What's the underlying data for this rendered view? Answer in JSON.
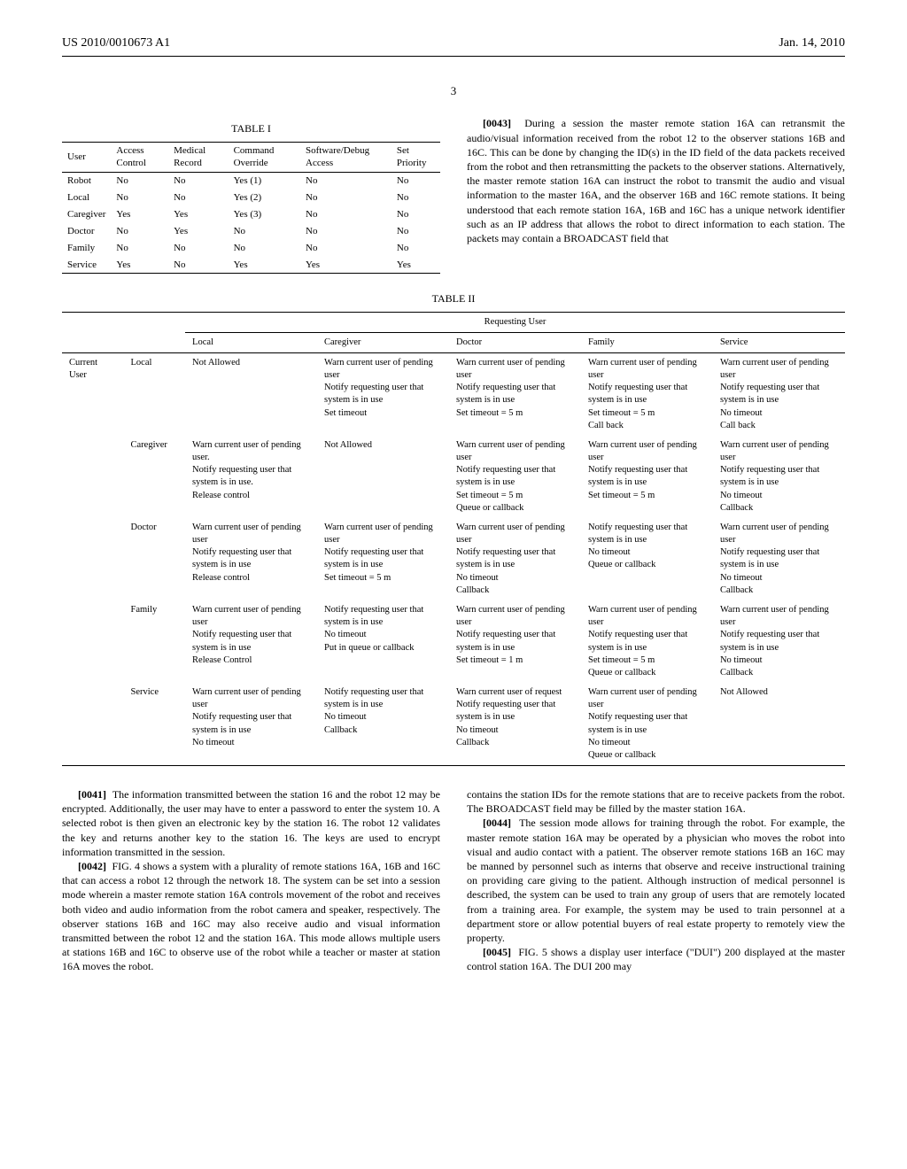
{
  "meta": {
    "pub_number": "US 2010/0010673 A1",
    "pub_date": "Jan. 14, 2010",
    "page": "3"
  },
  "table1": {
    "title": "TABLE I",
    "headers": [
      "User",
      "Access Control",
      "Medical Record",
      "Command Override",
      "Software/Debug Access",
      "Set Priority"
    ],
    "rows": [
      [
        "Robot",
        "No",
        "No",
        "Yes (1)",
        "No",
        "No"
      ],
      [
        "Local",
        "No",
        "No",
        "Yes (2)",
        "No",
        "No"
      ],
      [
        "Caregiver",
        "Yes",
        "Yes",
        "Yes (3)",
        "No",
        "No"
      ],
      [
        "Doctor",
        "No",
        "Yes",
        "No",
        "No",
        "No"
      ],
      [
        "Family",
        "No",
        "No",
        "No",
        "No",
        "No"
      ],
      [
        "Service",
        "Yes",
        "No",
        "Yes",
        "Yes",
        "Yes"
      ]
    ]
  },
  "para43": {
    "num": "[0043]",
    "text": "During a session the master remote station 16A can retransmit the audio/visual information received from the robot 12 to the observer stations 16B and 16C. This can be done by changing the ID(s) in the ID field of the data packets received from the robot and then retransmitting the packets to the observer stations. Alternatively, the master remote station 16A can instruct the robot to transmit the audio and visual information to the master 16A, and the observer 16B and 16C remote stations. It being understood that each remote station 16A, 16B and 16C has a unique network identifier such as an IP address that allows the robot to direct information to each station. The packets may contain a BROADCAST field that"
  },
  "table2": {
    "title": "TABLE II",
    "group_header": "Requesting User",
    "col_headers": [
      "Local",
      "Caregiver",
      "Doctor",
      "Family",
      "Service"
    ],
    "row_group_label": "Current User",
    "rows": [
      {
        "label": "Local",
        "cells": [
          "Not Allowed",
          "Warn current user of pending user\nNotify requesting user that system is in use\nSet timeout",
          "Warn current user of pending user\nNotify requesting user that system is in use\nSet timeout = 5 m",
          "Warn current user of pending user\nNotify requesting user that system is in use\nSet timeout = 5 m\nCall back",
          "Warn current user of pending user\nNotify requesting user that system is in use\nNo timeout\nCall back"
        ]
      },
      {
        "label": "Caregiver",
        "cells": [
          "Warn current user of pending user.\nNotify requesting user that system is in use.\nRelease control",
          "Not Allowed",
          "Warn current user of pending user\nNotify requesting user that system is in use\nSet timeout = 5 m\nQueue or callback",
          "Warn current user of pending user\nNotify requesting user that system is in use\nSet timeout = 5 m",
          "Warn current user of pending user\nNotify requesting user that system is in use\nNo timeout\nCallback"
        ]
      },
      {
        "label": "Doctor",
        "cells": [
          "Warn current user of pending user\nNotify requesting user that system is in use\nRelease control",
          "Warn current user of pending user\nNotify requesting user that system is in use\nSet timeout = 5 m",
          "Warn current user of pending user\nNotify requesting user that system is in use\nNo timeout\nCallback",
          "Notify requesting user that system is in use\nNo timeout\nQueue or callback",
          "Warn current user of pending user\nNotify requesting user that system is in use\nNo timeout\nCallback"
        ]
      },
      {
        "label": "Family",
        "cells": [
          "Warn current user of pending user\nNotify requesting user that system is in use\nRelease Control",
          "Notify requesting user that system is in use\nNo timeout\nPut in queue or callback",
          "Warn current user of pending user\nNotify requesting user that system is in use\nSet timeout = 1 m",
          "Warn current user of pending user\nNotify requesting user that system is in use\nSet timeout = 5 m\nQueue or callback",
          "Warn current user of pending user\nNotify requesting user that system is in use\nNo timeout\nCallback"
        ]
      },
      {
        "label": "Service",
        "cells": [
          "Warn current user of pending user\nNotify requesting user that system is in use\nNo timeout",
          "Notify requesting user that system is in use\nNo timeout\nCallback",
          "Warn current user of request\nNotify requesting user that system is in use\nNo timeout\nCallback",
          "Warn current user of pending user\nNotify requesting user that system is in use\nNo timeout\nQueue or callback",
          "Not Allowed"
        ]
      }
    ]
  },
  "para41": {
    "num": "[0041]",
    "text": "The information transmitted between the station 16 and the robot 12 may be encrypted. Additionally, the user may have to enter a password to enter the system 10. A selected robot is then given an electronic key by the station 16. The robot 12 validates the key and returns another key to the station 16. The keys are used to encrypt information transmitted in the session."
  },
  "para42": {
    "num": "[0042]",
    "text": "FIG. 4 shows a system with a plurality of remote stations 16A, 16B and 16C that can access a robot 12 through the network 18. The system can be set into a session mode wherein a master remote station 16A controls movement of the robot and receives both video and audio information from the robot camera and speaker, respectively. The observer stations 16B and 16C may also receive audio and visual information transmitted between the robot 12 and the station 16A. This mode allows multiple users at stations 16B and 16C to observe use of the robot while a teacher or master at station 16A moves the robot."
  },
  "para43b": {
    "text": "contains the station IDs for the remote stations that are to receive packets from the robot. The BROADCAST field may be filled by the master station 16A."
  },
  "para44": {
    "num": "[0044]",
    "text": "The session mode allows for training through the robot. For example, the master remote station 16A may be operated by a physician who moves the robot into visual and audio contact with a patient. The observer remote stations 16B an 16C may be manned by personnel such as interns that observe and receive instructional training on providing care giving to the patient. Although instruction of medical personnel is described, the system can be used to train any group of users that are remotely located from a training area. For example, the system may be used to train personnel at a department store or allow potential buyers of real estate property to remotely view the property."
  },
  "para45": {
    "num": "[0045]",
    "text": "FIG. 5 shows a display user interface (\"DUI\") 200 displayed at the master control station 16A. The DUI 200 may"
  }
}
